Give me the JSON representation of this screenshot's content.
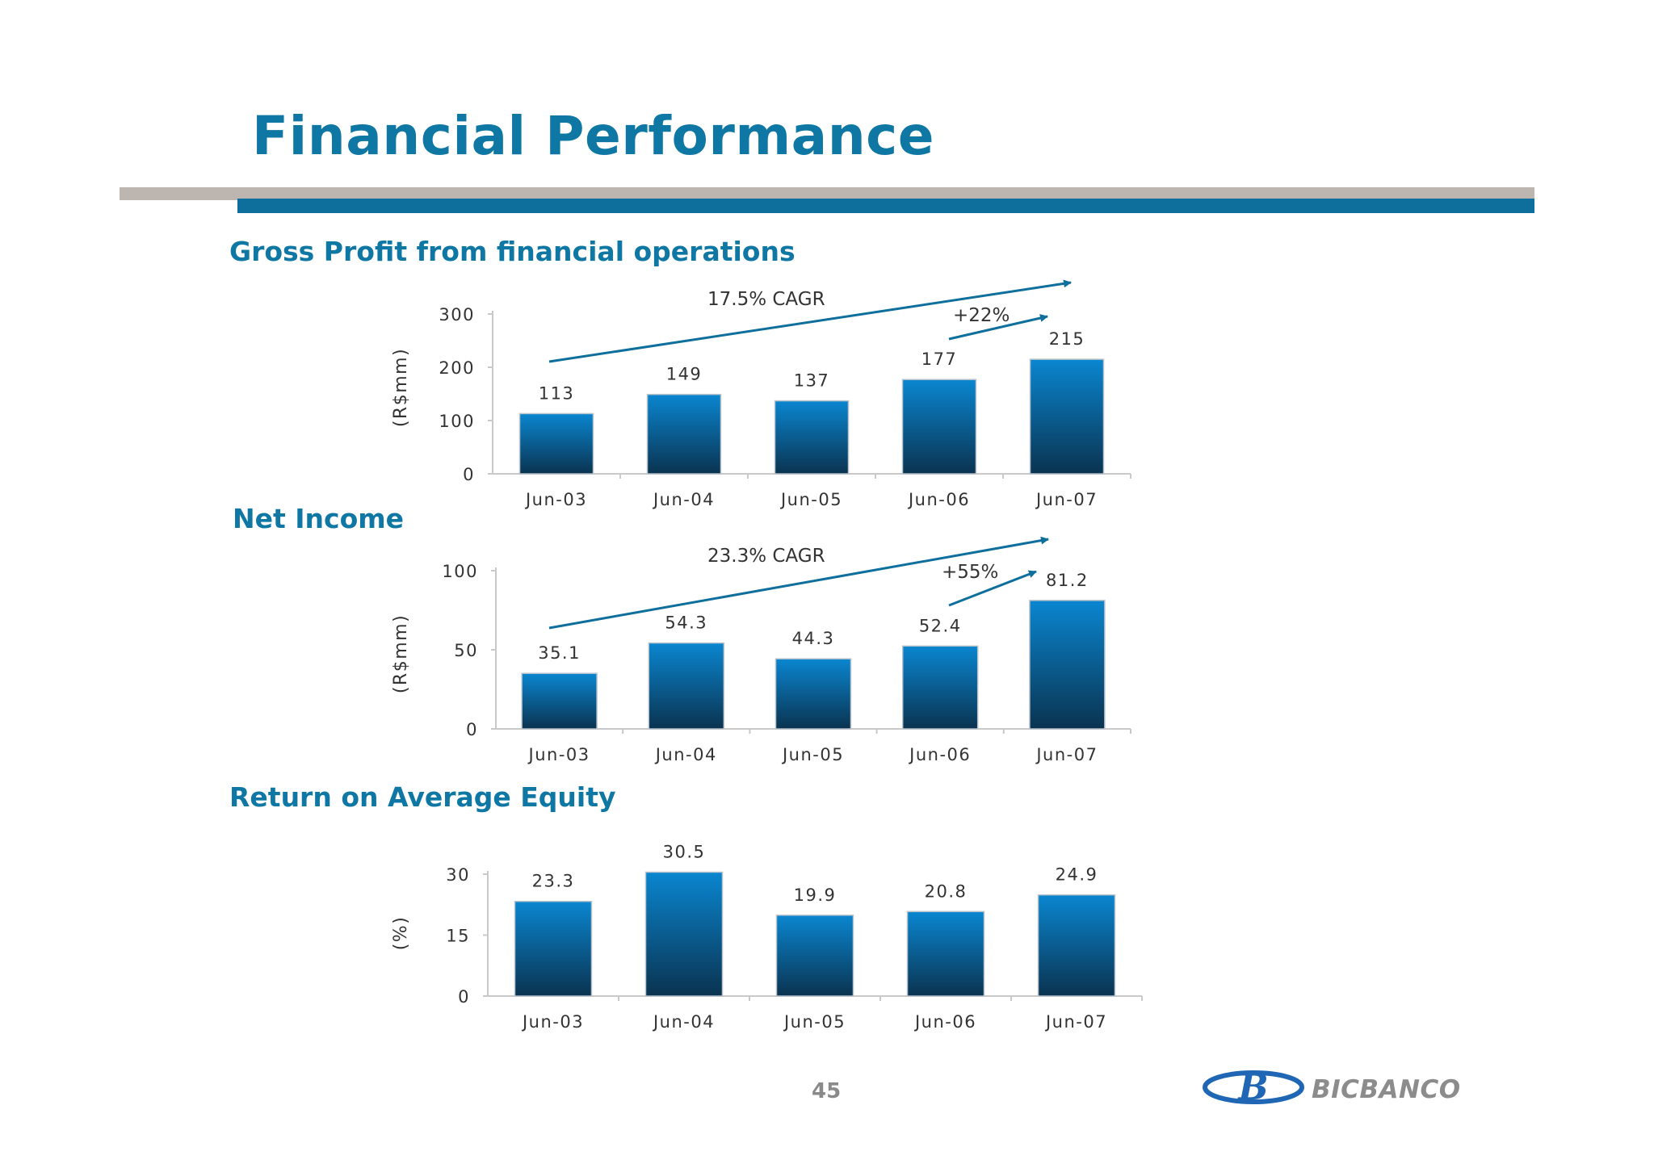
{
  "header": {
    "title": "Financial Performance"
  },
  "sections": {
    "gross_profit": "Gross Profit from financial operations",
    "net_income": "Net Income",
    "roae": "Return on Average Equity"
  },
  "colors": {
    "title": "#0e77a3",
    "bar_top": "#0a86d0",
    "bar_bottom": "#0a3350",
    "arrow": "#0e6f9c"
  },
  "chart_data": [
    {
      "type": "bar",
      "title": "Gross Profit from financial operations",
      "ylabel": "(R$mm)",
      "categories": [
        "Jun-03",
        "Jun-04",
        "Jun-05",
        "Jun-06",
        "Jun-07"
      ],
      "values": [
        113,
        149,
        137,
        177,
        215
      ],
      "value_labels": [
        "113",
        "149",
        "137",
        "177",
        "215"
      ],
      "yticks": [
        "0",
        "100",
        "200",
        "300"
      ],
      "ylim": [
        0,
        300
      ],
      "annotations": [
        "17.5% CAGR",
        "+22%"
      ]
    },
    {
      "type": "bar",
      "title": "Net Income",
      "ylabel": "(R$mm)",
      "categories": [
        "Jun-03",
        "Jun-04",
        "Jun-05",
        "Jun-06",
        "Jun-07"
      ],
      "values": [
        35.1,
        54.3,
        44.3,
        52.4,
        81.2
      ],
      "value_labels": [
        "35.1",
        "54.3",
        "44.3",
        "52.4",
        "81.2"
      ],
      "yticks": [
        "0",
        "50",
        "100"
      ],
      "ylim": [
        0,
        100
      ],
      "annotations": [
        "23.3% CAGR",
        "+55%"
      ]
    },
    {
      "type": "bar",
      "title": "Return on Average Equity",
      "ylabel": "(%)",
      "categories": [
        "Jun-03",
        "Jun-04",
        "Jun-05",
        "Jun-06",
        "Jun-07"
      ],
      "values": [
        23.3,
        30.5,
        19.9,
        20.8,
        24.9
      ],
      "value_labels": [
        "23.3",
        "30.5",
        "19.9",
        "20.8",
        "24.9"
      ],
      "yticks": [
        "0",
        "15",
        "30"
      ],
      "ylim": [
        0,
        30
      ],
      "annotations": []
    }
  ],
  "footer": {
    "page_number": "45",
    "logo_text": "BICBANCO",
    "logo_mark": "B"
  }
}
